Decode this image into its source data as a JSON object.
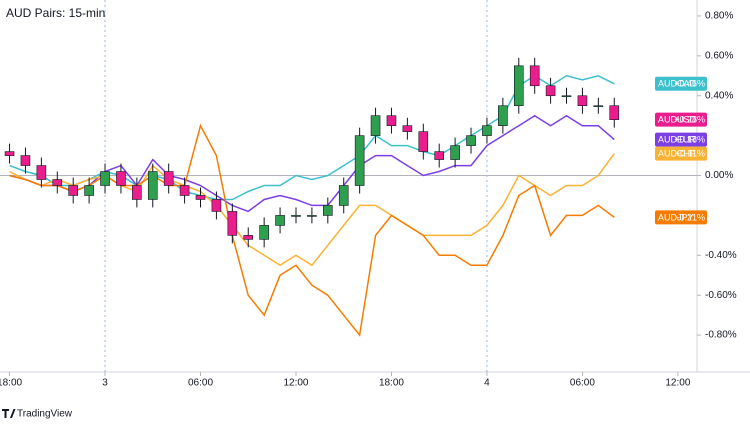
{
  "chart_data": {
    "type": "candlestick",
    "title": "AUD Pairs: 15-min",
    "footer": "TradingView",
    "xlim": [
      -0.6,
      43.2
    ],
    "ylim": [
      -0.985,
      0.88
    ],
    "zero_line": 0,
    "day_breaks": [
      6,
      30
    ],
    "xticks": [
      {
        "value": 0,
        "label": "18:00"
      },
      {
        "value": 6,
        "label": "3"
      },
      {
        "value": 12,
        "label": "06:00"
      },
      {
        "value": 18,
        "label": "12:00"
      },
      {
        "value": 24,
        "label": "18:00"
      },
      {
        "value": 30,
        "label": "4"
      },
      {
        "value": 36,
        "label": "06:00"
      },
      {
        "value": 42,
        "label": "12:00"
      }
    ],
    "yticks": [
      {
        "value": 0.8,
        "label": "0.80%"
      },
      {
        "value": 0.6,
        "label": "0.60%"
      },
      {
        "value": 0.4,
        "label": "0.40%"
      },
      {
        "value": 0,
        "label": "0.00%"
      },
      {
        "value": -0.4,
        "label": "-0.40%"
      },
      {
        "value": -0.6,
        "label": "-0.60%"
      },
      {
        "value": -0.8,
        "label": "-0.80%"
      }
    ],
    "x": [
      0,
      1,
      2,
      3,
      4,
      5,
      6,
      7,
      8,
      9,
      10,
      11,
      12,
      13,
      14,
      15,
      16,
      17,
      18,
      19,
      20,
      21,
      22,
      23,
      24,
      25,
      26,
      27,
      28,
      29,
      30,
      31,
      32,
      33,
      34,
      35,
      36,
      37,
      38
    ],
    "series": [
      {
        "name": "AUDCAD",
        "type": "line",
        "color": "#3cc0cc",
        "last_value_label": "+0.46%",
        "values": [
          0.05,
          0.02,
          0.0,
          -0.05,
          -0.05,
          -0.02,
          0.02,
          0.0,
          -0.05,
          0.0,
          -0.02,
          -0.08,
          -0.1,
          -0.12,
          -0.12,
          -0.08,
          -0.05,
          -0.05,
          0.0,
          -0.02,
          0.0,
          0.05,
          0.1,
          0.2,
          0.15,
          0.15,
          0.12,
          0.1,
          0.15,
          0.2,
          0.25,
          0.3,
          0.45,
          0.5,
          0.45,
          0.5,
          0.48,
          0.5,
          0.46
        ]
      },
      {
        "name": "AUDEUR",
        "type": "line",
        "color": "#7b3fe4",
        "last_value_label": "+0.18%",
        "values": [
          0.0,
          -0.02,
          -0.05,
          -0.05,
          -0.08,
          -0.05,
          0.02,
          0.05,
          -0.05,
          0.08,
          0.0,
          -0.02,
          -0.05,
          -0.1,
          -0.15,
          -0.18,
          -0.12,
          -0.1,
          -0.12,
          -0.15,
          -0.15,
          -0.05,
          0.05,
          0.1,
          0.1,
          0.05,
          0.0,
          0.02,
          0.05,
          0.05,
          0.15,
          0.2,
          0.25,
          0.3,
          0.25,
          0.3,
          0.25,
          0.25,
          0.18
        ]
      },
      {
        "name": "AUDCHF",
        "type": "line",
        "color": "#f9b233",
        "last_value_label": "+0.11%",
        "values": [
          0.02,
          -0.02,
          -0.05,
          -0.02,
          -0.05,
          -0.02,
          0.0,
          -0.05,
          -0.08,
          0.05,
          -0.02,
          -0.05,
          -0.08,
          -0.15,
          -0.25,
          -0.35,
          -0.4,
          -0.45,
          -0.4,
          -0.45,
          -0.35,
          -0.25,
          -0.15,
          -0.15,
          -0.2,
          -0.25,
          -0.3,
          -0.3,
          -0.3,
          -0.3,
          -0.25,
          -0.15,
          0.0,
          -0.05,
          -0.1,
          -0.05,
          -0.05,
          0.0,
          0.11
        ]
      },
      {
        "name": "AUDJPY",
        "type": "line",
        "color": "#f57c00",
        "last_value_label": "-0.21%",
        "values": [
          0.0,
          -0.02,
          -0.05,
          -0.05,
          -0.08,
          -0.05,
          0.0,
          -0.05,
          -0.05,
          0.0,
          -0.05,
          -0.05,
          0.25,
          0.1,
          -0.3,
          -0.6,
          -0.7,
          -0.5,
          -0.45,
          -0.55,
          -0.6,
          -0.7,
          -0.8,
          -0.3,
          -0.2,
          -0.25,
          -0.3,
          -0.4,
          -0.4,
          -0.45,
          -0.45,
          -0.3,
          -0.1,
          -0.05,
          -0.3,
          -0.2,
          -0.2,
          -0.15,
          -0.21
        ]
      },
      {
        "name": "AUDUSD",
        "type": "candlestick",
        "color": "#e91e8c",
        "up_color": "#2e9e4f",
        "last_value_label": "+0.28%",
        "open": [
          0.12,
          0.1,
          0.05,
          -0.02,
          -0.05,
          -0.1,
          -0.05,
          0.02,
          -0.05,
          -0.12,
          0.02,
          -0.05,
          -0.1,
          -0.12,
          -0.18,
          -0.3,
          -0.32,
          -0.25,
          -0.2,
          -0.2,
          -0.2,
          -0.15,
          -0.05,
          0.2,
          0.3,
          0.25,
          0.22,
          0.12,
          0.08,
          0.15,
          0.2,
          0.25,
          0.35,
          0.55,
          0.45,
          0.4,
          0.4,
          0.35,
          0.35
        ],
        "high": [
          0.16,
          0.14,
          0.09,
          0.02,
          -0.01,
          -0.01,
          0.06,
          0.06,
          -0.01,
          0.06,
          0.06,
          -0.01,
          -0.06,
          -0.08,
          -0.14,
          -0.26,
          -0.21,
          -0.16,
          -0.16,
          -0.16,
          -0.11,
          -0.01,
          0.24,
          0.34,
          0.34,
          0.29,
          0.26,
          0.16,
          0.19,
          0.24,
          0.29,
          0.39,
          0.59,
          0.59,
          0.49,
          0.44,
          0.44,
          0.39,
          0.39
        ],
        "low": [
          0.06,
          0.01,
          -0.06,
          -0.09,
          -0.14,
          -0.14,
          -0.09,
          -0.09,
          -0.16,
          -0.16,
          -0.09,
          -0.14,
          -0.16,
          -0.22,
          -0.34,
          -0.36,
          -0.36,
          -0.29,
          -0.24,
          -0.24,
          -0.24,
          -0.19,
          -0.09,
          0.16,
          0.21,
          0.18,
          0.08,
          0.04,
          0.04,
          0.11,
          0.16,
          0.21,
          0.31,
          0.41,
          0.36,
          0.36,
          0.31,
          0.31,
          0.24
        ],
        "close": [
          0.1,
          0.05,
          -0.02,
          -0.05,
          -0.1,
          -0.05,
          0.02,
          -0.05,
          -0.12,
          0.02,
          -0.05,
          -0.1,
          -0.12,
          -0.18,
          -0.3,
          -0.32,
          -0.25,
          -0.2,
          -0.2,
          -0.2,
          -0.15,
          -0.05,
          0.2,
          0.3,
          0.25,
          0.22,
          0.12,
          0.08,
          0.15,
          0.2,
          0.25,
          0.35,
          0.55,
          0.45,
          0.4,
          0.4,
          0.35,
          0.35,
          0.28
        ]
      }
    ]
  }
}
